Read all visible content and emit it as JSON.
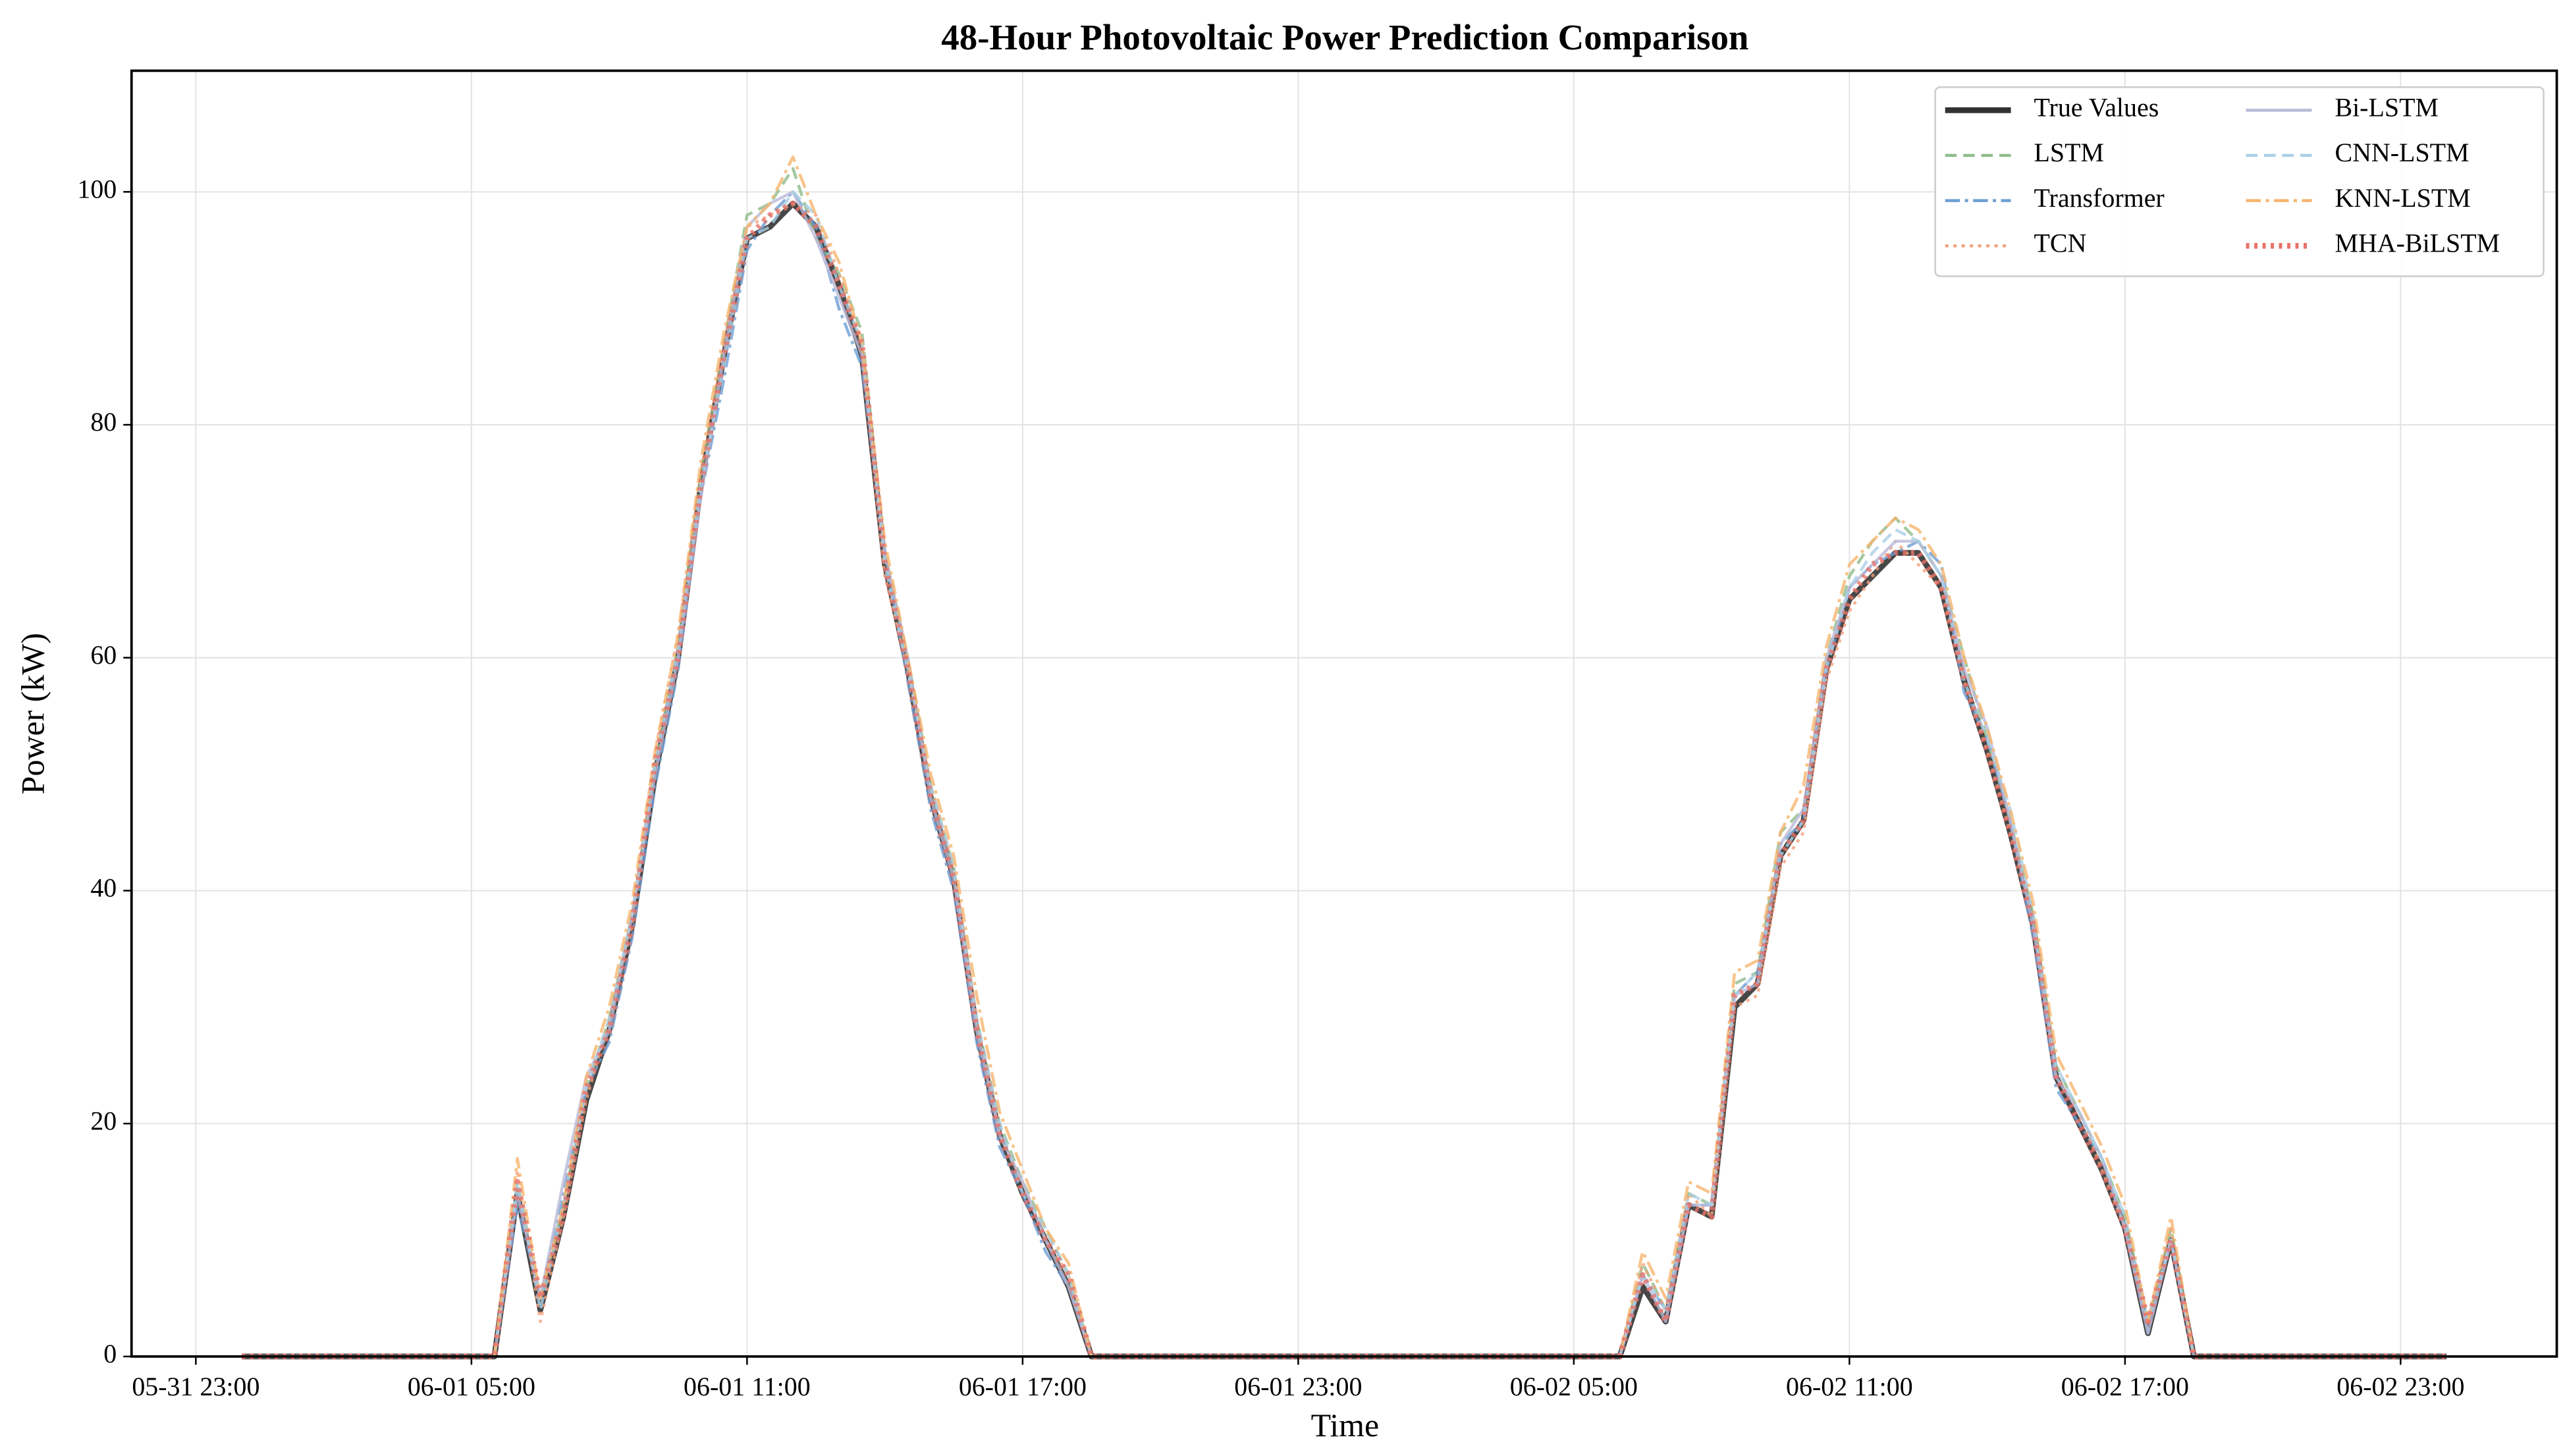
{
  "chart_data": {
    "type": "line",
    "title": "48-Hour Photovoltaic Power Prediction Comparison",
    "x_label": "Time",
    "y_label": "Power (kW)",
    "x": [
      "06-01 00:00",
      "06-01 00:30",
      "06-01 01:00",
      "06-01 01:30",
      "06-01 02:00",
      "06-01 02:30",
      "06-01 03:00",
      "06-01 03:30",
      "06-01 04:00",
      "06-01 04:30",
      "06-01 05:00",
      "06-01 05:30",
      "06-01 06:00",
      "06-01 06:30",
      "06-01 07:00",
      "06-01 07:30",
      "06-01 08:00",
      "06-01 08:30",
      "06-01 09:00",
      "06-01 09:30",
      "06-01 10:00",
      "06-01 10:30",
      "06-01 11:00",
      "06-01 11:30",
      "06-01 12:00",
      "06-01 12:30",
      "06-01 13:00",
      "06-01 13:30",
      "06-01 14:00",
      "06-01 14:30",
      "06-01 15:00",
      "06-01 15:30",
      "06-01 16:00",
      "06-01 16:30",
      "06-01 17:00",
      "06-01 17:30",
      "06-01 18:00",
      "06-01 18:30",
      "06-01 19:00",
      "06-01 19:30",
      "06-01 20:00",
      "06-01 20:30",
      "06-01 21:00",
      "06-01 21:30",
      "06-01 22:00",
      "06-01 22:30",
      "06-01 23:00",
      "06-01 23:30",
      "06-02 00:00",
      "06-02 00:30",
      "06-02 01:00",
      "06-02 01:30",
      "06-02 02:00",
      "06-02 02:30",
      "06-02 03:00",
      "06-02 03:30",
      "06-02 04:00",
      "06-02 04:30",
      "06-02 05:00",
      "06-02 05:30",
      "06-02 06:00",
      "06-02 06:30",
      "06-02 07:00",
      "06-02 07:30",
      "06-02 08:00",
      "06-02 08:30",
      "06-02 09:00",
      "06-02 09:30",
      "06-02 10:00",
      "06-02 10:30",
      "06-02 11:00",
      "06-02 11:30",
      "06-02 12:00",
      "06-02 12:30",
      "06-02 13:00",
      "06-02 13:30",
      "06-02 14:00",
      "06-02 14:30",
      "06-02 15:00",
      "06-02 15:30",
      "06-02 16:00",
      "06-02 16:30",
      "06-02 17:00",
      "06-02 17:30",
      "06-02 18:00",
      "06-02 18:30",
      "06-02 19:00",
      "06-02 19:30",
      "06-02 20:00",
      "06-02 20:30",
      "06-02 21:00",
      "06-02 21:30",
      "06-02 22:00",
      "06-02 22:30",
      "06-02 23:00",
      "06-02 23:30",
      "06-03 00:00"
    ],
    "xlim": [
      "05-31 21:36",
      "06-03 02:24"
    ],
    "xticks": [
      "05-31 23:00",
      "06-01 05:00",
      "06-01 11:00",
      "06-01 17:00",
      "06-01 23:00",
      "06-02 05:00",
      "06-02 11:00",
      "06-02 17:00",
      "06-02 23:00"
    ],
    "ylim": [
      0,
      110.4
    ],
    "yticks": [
      0,
      20,
      40,
      60,
      80,
      100
    ],
    "grid": true,
    "legend": "upper right",
    "series": [
      {
        "name": "True Values",
        "color": "#333333",
        "style": "solid",
        "values": [
          0,
          0,
          0,
          0,
          0,
          0,
          0,
          0,
          0,
          0,
          0,
          0,
          14,
          4,
          12,
          22,
          28,
          37,
          50,
          60,
          75,
          86,
          96,
          97,
          99,
          97,
          92,
          86,
          68,
          59,
          48,
          41,
          28,
          19,
          14,
          10,
          6,
          0,
          0,
          0,
          0,
          0,
          0,
          0,
          0,
          0,
          0,
          0,
          0,
          0,
          0,
          0,
          0,
          0,
          0,
          0,
          0,
          0,
          0,
          0,
          0,
          6,
          3,
          13,
          12,
          30,
          32,
          43,
          46,
          59,
          65,
          67,
          69,
          69,
          66,
          58,
          52,
          45,
          37,
          24,
          20,
          16,
          11,
          2,
          10,
          0,
          0,
          0,
          0,
          0,
          0,
          0,
          0,
          0,
          0,
          0,
          0
        ]
      },
      {
        "name": "LSTM",
        "color": "#8fbc8a",
        "style": "dashed",
        "values": [
          0,
          0,
          0,
          0,
          0,
          0,
          0,
          0,
          0,
          0,
          0,
          0,
          15,
          5,
          13,
          23,
          29,
          38,
          51,
          61,
          76,
          87,
          98,
          99,
          102,
          96,
          93,
          88,
          69,
          60,
          49,
          42,
          29,
          20,
          15,
          11,
          7,
          0,
          0,
          0,
          0,
          0,
          0,
          0,
          0,
          0,
          0,
          0,
          0,
          0,
          0,
          0,
          0,
          0,
          0,
          0,
          0,
          0,
          0,
          0,
          0,
          8,
          4,
          14,
          13,
          32,
          33,
          45,
          47,
          60,
          67,
          70,
          72,
          70,
          67,
          60,
          53,
          46,
          38,
          25,
          21,
          17,
          12,
          3,
          11,
          0,
          0,
          0,
          0,
          0,
          0,
          0,
          0,
          0,
          0,
          0,
          0
        ]
      },
      {
        "name": "Transformer",
        "color": "#6d9ed3",
        "style": "dashdot",
        "values": [
          0,
          0,
          0,
          0,
          0,
          0,
          0,
          0,
          0,
          0,
          0,
          0,
          13,
          5,
          14,
          23,
          27,
          36,
          49,
          59,
          74,
          84,
          95,
          98,
          100,
          97,
          90,
          85,
          69,
          58,
          47,
          40,
          27,
          18,
          14,
          9,
          6,
          0,
          0,
          0,
          0,
          0,
          0,
          0,
          0,
          0,
          0,
          0,
          0,
          0,
          0,
          0,
          0,
          0,
          0,
          0,
          0,
          0,
          0,
          0,
          0,
          7,
          4,
          13,
          13,
          31,
          33,
          44,
          46,
          59,
          66,
          68,
          69,
          70,
          68,
          57,
          53,
          46,
          36,
          23,
          20,
          17,
          11,
          2,
          10,
          0,
          0,
          0,
          0,
          0,
          0,
          0,
          0,
          0,
          0,
          0,
          0
        ]
      },
      {
        "name": "TCN",
        "color": "#f4a07a",
        "style": "dotted",
        "values": [
          0,
          0,
          0,
          0,
          0,
          0,
          0,
          0,
          0,
          0,
          0,
          0,
          16,
          3,
          12,
          22,
          29,
          37,
          52,
          62,
          76,
          87,
          97,
          98,
          99,
          98,
          93,
          87,
          67,
          59,
          49,
          42,
          29,
          19,
          15,
          10,
          7,
          0,
          0,
          0,
          0,
          0,
          0,
          0,
          0,
          0,
          0,
          0,
          0,
          0,
          0,
          0,
          0,
          0,
          0,
          0,
          0,
          0,
          0,
          0,
          0,
          8,
          4,
          14,
          12,
          30,
          31,
          42,
          45,
          58,
          64,
          67,
          70,
          68,
          66,
          58,
          52,
          45,
          38,
          24,
          21,
          16,
          11,
          3,
          11,
          0,
          0,
          0,
          0,
          0,
          0,
          0,
          0,
          0,
          0,
          0,
          0
        ]
      },
      {
        "name": "Bi-LSTM",
        "color": "#b9bad8",
        "style": "solid",
        "values": [
          0,
          0,
          0,
          0,
          0,
          0,
          0,
          0,
          0,
          0,
          0,
          0,
          14,
          5,
          15,
          24,
          28,
          38,
          50,
          60,
          74,
          86,
          97,
          99,
          100,
          96,
          91,
          86,
          69,
          60,
          48,
          41,
          28,
          19,
          15,
          10,
          6,
          0,
          0,
          0,
          0,
          0,
          0,
          0,
          0,
          0,
          0,
          0,
          0,
          0,
          0,
          0,
          0,
          0,
          0,
          0,
          0,
          0,
          0,
          0,
          0,
          7,
          3,
          13,
          13,
          31,
          32,
          44,
          47,
          60,
          66,
          68,
          70,
          70,
          67,
          59,
          54,
          46,
          37,
          24,
          21,
          17,
          11,
          2,
          10,
          0,
          0,
          0,
          0,
          0,
          0,
          0,
          0,
          0,
          0,
          0,
          0
        ]
      },
      {
        "name": "CNN-LSTM",
        "color": "#a9d0e6",
        "style": "dashed",
        "values": [
          0,
          0,
          0,
          0,
          0,
          0,
          0,
          0,
          0,
          0,
          0,
          0,
          15,
          4,
          13,
          23,
          29,
          38,
          51,
          61,
          75,
          85,
          96,
          97,
          100,
          98,
          92,
          87,
          68,
          59,
          49,
          42,
          29,
          20,
          14,
          11,
          7,
          0,
          0,
          0,
          0,
          0,
          0,
          0,
          0,
          0,
          0,
          0,
          0,
          0,
          0,
          0,
          0,
          0,
          0,
          0,
          0,
          0,
          0,
          0,
          0,
          7,
          4,
          14,
          13,
          31,
          33,
          43,
          46,
          59,
          66,
          69,
          71,
          70,
          67,
          58,
          53,
          47,
          38,
          25,
          21,
          17,
          12,
          3,
          10,
          0,
          0,
          0,
          0,
          0,
          0,
          0,
          0,
          0,
          0,
          0,
          0
        ]
      },
      {
        "name": "KNN-LSTM",
        "color": "#f6b56e",
        "style": "dashdot",
        "values": [
          0,
          0,
          0,
          0,
          0,
          0,
          0,
          0,
          0,
          0,
          0,
          0,
          17,
          5,
          13,
          24,
          30,
          39,
          52,
          62,
          77,
          88,
          97,
          99,
          103,
          98,
          94,
          87,
          70,
          60,
          50,
          43,
          31,
          21,
          16,
          11,
          8,
          0,
          0,
          0,
          0,
          0,
          0,
          0,
          0,
          0,
          0,
          0,
          0,
          0,
          0,
          0,
          0,
          0,
          0,
          0,
          0,
          0,
          0,
          0,
          0,
          9,
          5,
          15,
          14,
          33,
          34,
          45,
          49,
          61,
          68,
          70,
          72,
          71,
          68,
          60,
          54,
          47,
          39,
          26,
          22,
          18,
          13,
          3,
          12,
          0,
          0,
          0,
          0,
          0,
          0,
          0,
          0,
          0,
          0,
          0,
          0
        ]
      },
      {
        "name": "MHA-BiLSTM",
        "color": "#e8736a",
        "style": "dotted",
        "values": [
          0,
          0,
          0,
          0,
          0,
          0,
          0,
          0,
          0,
          0,
          0,
          0,
          15,
          5,
          12,
          23,
          28,
          37,
          51,
          60,
          75,
          86,
          96,
          98,
          99,
          97,
          92,
          87,
          68,
          59,
          48,
          41,
          28,
          19,
          14,
          10,
          7,
          0,
          0,
          0,
          0,
          0,
          0,
          0,
          0,
          0,
          0,
          0,
          0,
          0,
          0,
          0,
          0,
          0,
          0,
          0,
          0,
          0,
          0,
          0,
          0,
          7,
          3,
          13,
          12,
          31,
          32,
          43,
          46,
          59,
          65,
          68,
          69,
          69,
          66,
          58,
          52,
          45,
          37,
          24,
          20,
          16,
          11,
          3,
          10,
          0,
          0,
          0,
          0,
          0,
          0,
          0,
          0,
          0,
          0,
          0,
          0
        ]
      }
    ]
  }
}
